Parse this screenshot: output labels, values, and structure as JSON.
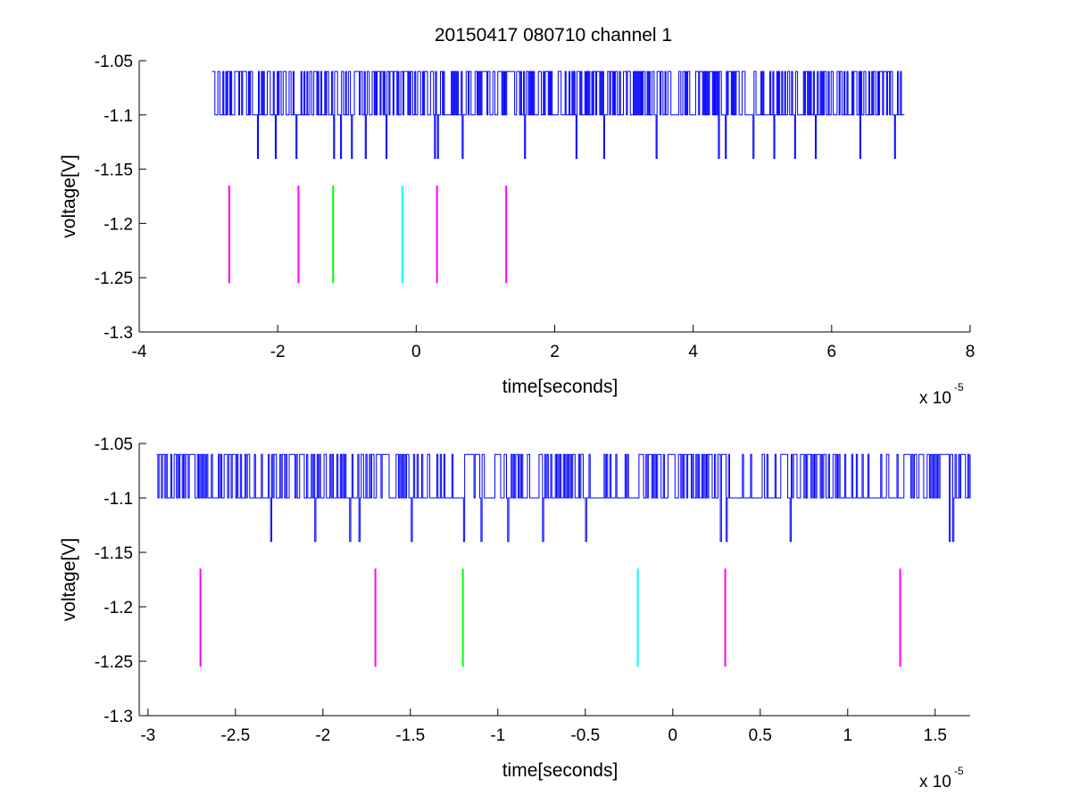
{
  "figure_title": "20150417 080710 channel 1",
  "colors": {
    "signal": "#0000ff",
    "marker_magenta": "#ff00ff",
    "marker_green": "#00ff00",
    "marker_cyan": "#00ffff",
    "axes": "#000000",
    "background": "#ffffff"
  },
  "chart_data": [
    {
      "type": "line",
      "title": "20150417 080710 channel 1",
      "xlabel": "time[seconds]",
      "ylabel": "voltage[V]",
      "x_multiplier_label": "x 10",
      "x_multiplier_exponent": "-5",
      "xlim": [
        -4,
        8
      ],
      "ylim": [
        -1.3,
        -1.05
      ],
      "x_ticks": [
        -4,
        -2,
        0,
        2,
        4,
        6,
        8
      ],
      "x_tick_labels": [
        "-4",
        "-2",
        "0",
        "2",
        "4",
        "6",
        "8"
      ],
      "y_ticks": [
        -1.3,
        -1.25,
        -1.2,
        -1.15,
        -1.1,
        -1.05
      ],
      "y_tick_labels": [
        "-1.3",
        "-1.25",
        "-1.2",
        "-1.15",
        "-1.1",
        "-1.05"
      ],
      "grid": false,
      "signal": {
        "x_range": [
          -2.95,
          7.05
        ],
        "levels": [
          -1.06,
          -1.1,
          -1.14
        ],
        "baseline": -1.1,
        "dip_times": [
          -2.3,
          -2.05,
          -1.75,
          -1.2,
          -1.1,
          -0.95,
          -0.75,
          -0.45,
          0.25,
          0.3,
          0.65,
          1.55,
          2.3,
          2.7,
          3.45,
          4.35,
          4.45,
          4.85,
          5.15,
          5.45,
          5.75,
          6.4,
          6.9
        ]
      },
      "markers": [
        {
          "x": -2.7,
          "y_range": [
            -1.255,
            -1.165
          ],
          "color": "#ff00ff"
        },
        {
          "x": -1.7,
          "y_range": [
            -1.255,
            -1.165
          ],
          "color": "#ff00ff"
        },
        {
          "x": -1.2,
          "y_range": [
            -1.255,
            -1.165
          ],
          "color": "#00ff00"
        },
        {
          "x": -0.2,
          "y_range": [
            -1.255,
            -1.165
          ],
          "color": "#00ffff"
        },
        {
          "x": 0.3,
          "y_range": [
            -1.255,
            -1.165
          ],
          "color": "#ff00ff"
        },
        {
          "x": 1.3,
          "y_range": [
            -1.255,
            -1.165
          ],
          "color": "#ff00ff"
        }
      ]
    },
    {
      "type": "line",
      "xlabel": "time[seconds]",
      "ylabel": "voltage[V]",
      "x_multiplier_label": "x 10",
      "x_multiplier_exponent": "-5",
      "xlim": [
        -3.05,
        1.7
      ],
      "ylim": [
        -1.3,
        -1.05
      ],
      "x_ticks": [
        -3,
        -2.5,
        -2,
        -1.5,
        -1,
        -0.5,
        0,
        0.5,
        1,
        1.5
      ],
      "x_tick_labels": [
        "-3",
        "-2.5",
        "-2",
        "-1.5",
        "-1",
        "-0.5",
        "0",
        "0.5",
        "1",
        "1.5"
      ],
      "y_ticks": [
        -1.3,
        -1.25,
        -1.2,
        -1.15,
        -1.1,
        -1.05
      ],
      "y_tick_labels": [
        "-1.3",
        "-1.25",
        "-1.2",
        "-1.15",
        "-1.1",
        "-1.05"
      ],
      "grid": false,
      "signal": {
        "x_range": [
          -2.95,
          1.7
        ],
        "levels": [
          -1.06,
          -1.1,
          -1.14
        ],
        "baseline": -1.1,
        "dip_times": [
          -2.3,
          -2.05,
          -1.85,
          -1.8,
          -1.5,
          -1.2,
          -1.1,
          -0.95,
          -0.75,
          -0.5,
          0.27,
          0.3,
          0.67,
          1.58,
          1.6
        ]
      },
      "markers": [
        {
          "x": -2.7,
          "y_range": [
            -1.255,
            -1.165
          ],
          "color": "#ff00ff"
        },
        {
          "x": -1.7,
          "y_range": [
            -1.255,
            -1.165
          ],
          "color": "#ff00ff"
        },
        {
          "x": -1.2,
          "y_range": [
            -1.255,
            -1.165
          ],
          "color": "#00ff00"
        },
        {
          "x": -0.2,
          "y_range": [
            -1.255,
            -1.165
          ],
          "color": "#00ffff"
        },
        {
          "x": 0.3,
          "y_range": [
            -1.255,
            -1.165
          ],
          "color": "#ff00ff"
        },
        {
          "x": 1.3,
          "y_range": [
            -1.255,
            -1.165
          ],
          "color": "#ff00ff"
        }
      ]
    }
  ]
}
